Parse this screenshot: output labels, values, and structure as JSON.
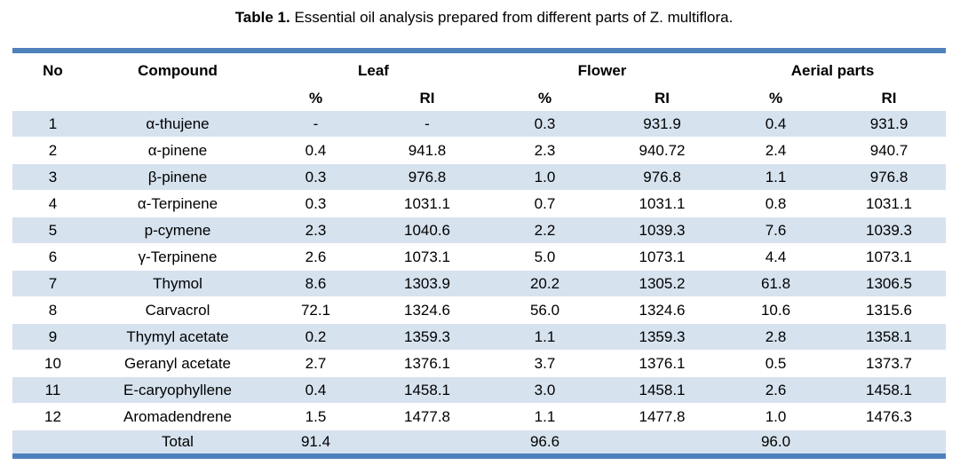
{
  "caption": {
    "label": "Table 1.",
    "text": " Essential oil analysis prepared from different parts of Z. multiflora."
  },
  "colors": {
    "accent_bar": "#4F81BD",
    "row_shading": "#D6E2EE"
  },
  "table": {
    "headers": {
      "no": "No",
      "compound": "Compound",
      "leaf": "Leaf",
      "flower": "Flower",
      "aerial": "Aerial parts",
      "pct": "%",
      "ri": "RI"
    },
    "rows": [
      {
        "no": "1",
        "compound": "α-thujene",
        "leaf_pct": "-",
        "leaf_ri": "-",
        "flower_pct": "0.3",
        "flower_ri": "931.9",
        "aerial_pct": "0.4",
        "aerial_ri": "931.9"
      },
      {
        "no": "2",
        "compound": "α-pinene",
        "leaf_pct": "0.4",
        "leaf_ri": "941.8",
        "flower_pct": "2.3",
        "flower_ri": "940.72",
        "aerial_pct": "2.4",
        "aerial_ri": "940.7"
      },
      {
        "no": "3",
        "compound": "β-pinene",
        "leaf_pct": "0.3",
        "leaf_ri": "976.8",
        "flower_pct": "1.0",
        "flower_ri": "976.8",
        "aerial_pct": "1.1",
        "aerial_ri": "976.8"
      },
      {
        "no": "4",
        "compound": "α-Terpinene",
        "leaf_pct": "0.3",
        "leaf_ri": "1031.1",
        "flower_pct": "0.7",
        "flower_ri": "1031.1",
        "aerial_pct": "0.8",
        "aerial_ri": "1031.1"
      },
      {
        "no": "5",
        "compound": "p-cymene",
        "leaf_pct": "2.3",
        "leaf_ri": "1040.6",
        "flower_pct": "2.2",
        "flower_ri": "1039.3",
        "aerial_pct": "7.6",
        "aerial_ri": "1039.3"
      },
      {
        "no": "6",
        "compound": "γ-Terpinene",
        "leaf_pct": "2.6",
        "leaf_ri": "1073.1",
        "flower_pct": "5.0",
        "flower_ri": "1073.1",
        "aerial_pct": "4.4",
        "aerial_ri": "1073.1"
      },
      {
        "no": "7",
        "compound": "Thymol",
        "leaf_pct": "8.6",
        "leaf_ri": "1303.9",
        "flower_pct": "20.2",
        "flower_ri": "1305.2",
        "aerial_pct": "61.8",
        "aerial_ri": "1306.5"
      },
      {
        "no": "8",
        "compound": "Carvacrol",
        "leaf_pct": "72.1",
        "leaf_ri": "1324.6",
        "flower_pct": "56.0",
        "flower_ri": "1324.6",
        "aerial_pct": "10.6",
        "aerial_ri": "1315.6"
      },
      {
        "no": "9",
        "compound": "Thymyl acetate",
        "leaf_pct": "0.2",
        "leaf_ri": "1359.3",
        "flower_pct": "1.1",
        "flower_ri": "1359.3",
        "aerial_pct": "2.8",
        "aerial_ri": "1358.1"
      },
      {
        "no": "10",
        "compound": "Geranyl acetate",
        "leaf_pct": "2.7",
        "leaf_ri": "1376.1",
        "flower_pct": "3.7",
        "flower_ri": "1376.1",
        "aerial_pct": "0.5",
        "aerial_ri": "1373.7"
      },
      {
        "no": "11",
        "compound": "E-caryophyllene",
        "leaf_pct": "0.4",
        "leaf_ri": "1458.1",
        "flower_pct": "3.0",
        "flower_ri": "1458.1",
        "aerial_pct": "2.6",
        "aerial_ri": "1458.1"
      },
      {
        "no": "12",
        "compound": "Aromadendrene",
        "leaf_pct": "1.5",
        "leaf_ri": "1477.8",
        "flower_pct": "1.1",
        "flower_ri": "1477.8",
        "aerial_pct": "1.0",
        "aerial_ri": "1476.3"
      }
    ],
    "total": {
      "label": "Total",
      "leaf_pct": "91.4",
      "flower_pct": "96.6",
      "aerial_pct": "96.0"
    }
  }
}
